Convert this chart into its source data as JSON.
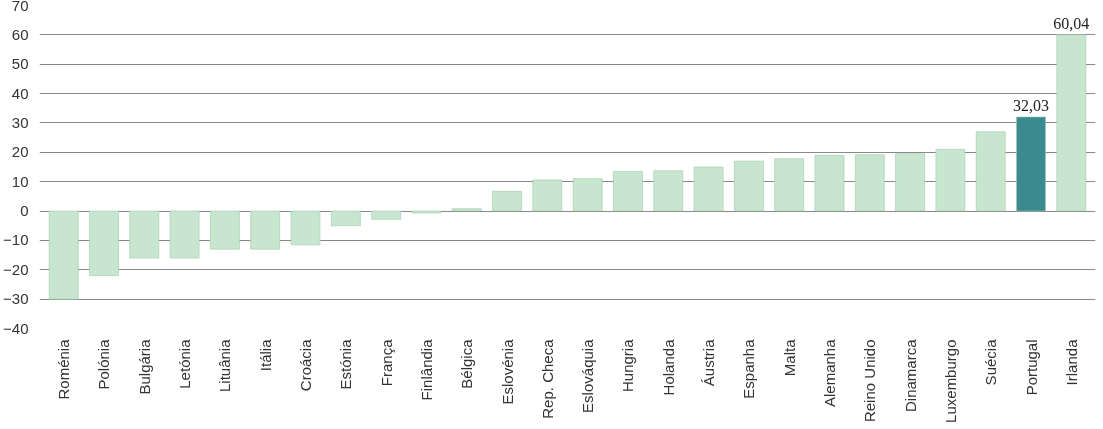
{
  "chart_data": {
    "type": "bar",
    "categories": [
      "Roménia",
      "Polónia",
      "Bulgária",
      "Letónia",
      "Lituânia",
      "Itália",
      "Croácia",
      "Estónia",
      "França",
      "Finlândia",
      "Bélgica",
      "Eslovénia",
      "Rep. Checa",
      "Eslováquia",
      "Hungria",
      "Holanda",
      "Áustria",
      "Espanha",
      "Malta",
      "Alemanha",
      "Reino Unido",
      "Dinamarca",
      "Luxemburgo",
      "Suécia",
      "Portugal",
      "Irlanda"
    ],
    "values": [
      -30,
      -22,
      -16,
      -16,
      -13,
      -13,
      -11.5,
      -5,
      -2.8,
      -0.7,
      0.8,
      6.7,
      10.6,
      11,
      13.5,
      13.7,
      15,
      17,
      17.8,
      19,
      19.2,
      19.5,
      21,
      27,
      32.03,
      60.04
    ],
    "colors": [
      "#c8e6cf",
      "#c8e6cf",
      "#c8e6cf",
      "#c8e6cf",
      "#c8e6cf",
      "#c8e6cf",
      "#c8e6cf",
      "#c8e6cf",
      "#c8e6cf",
      "#c8e6cf",
      "#c8e6cf",
      "#c8e6cf",
      "#c8e6cf",
      "#c8e6cf",
      "#c8e6cf",
      "#c8e6cf",
      "#c8e6cf",
      "#c8e6cf",
      "#c8e6cf",
      "#c8e6cf",
      "#c8e6cf",
      "#c8e6cf",
      "#c8e6cf",
      "#c8e6cf",
      "#3b8a8f",
      "#c8e6cf"
    ],
    "value_labels": [
      null,
      null,
      null,
      null,
      null,
      null,
      null,
      null,
      null,
      null,
      null,
      null,
      null,
      null,
      null,
      null,
      null,
      null,
      null,
      null,
      null,
      null,
      null,
      null,
      "32,03",
      "60,04"
    ],
    "ylim": [
      -40,
      70
    ],
    "yticks": [
      -40,
      -30,
      -20,
      -10,
      0,
      10,
      20,
      30,
      40,
      50,
      60,
      70
    ],
    "grid": "y"
  }
}
